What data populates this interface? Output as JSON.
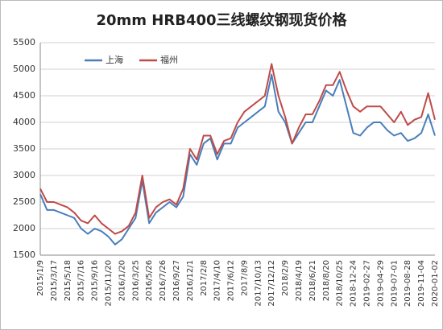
{
  "chart_data": {
    "type": "line",
    "title": "20mm HRB400三线螺纹钢现货价格",
    "categories": [
      "2015/1/9",
      null,
      "2015/3/17",
      null,
      "2015/5/18",
      null,
      "2015/7/16",
      null,
      "2015/9/16",
      null,
      "2015/11/20",
      null,
      "2016/1/20",
      null,
      "2016/3/25",
      null,
      "2016/5/26",
      null,
      "2016/7/26",
      null,
      "2016/9/27",
      null,
      "2016/12/1",
      null,
      "2017/2/8",
      null,
      "2017/4/10",
      null,
      "2017/6/12",
      null,
      "2017/8/9",
      null,
      "2017/10/13",
      null,
      "2017/12/12",
      null,
      "2018/2/9",
      null,
      "2018/4/19",
      null,
      "2018/6/21",
      null,
      "2018/8/20",
      null,
      "2018/10/25",
      null,
      "2018-12-24",
      null,
      "2019-02-27",
      null,
      "2019-04-29",
      null,
      "2019-07-01",
      null,
      "2019-08-28",
      null,
      "2019-11-04",
      null,
      "2020-01-02"
    ],
    "series": [
      {
        "name": "上海",
        "color": "#4a7ebb",
        "values": [
          2650,
          2350,
          2350,
          2300,
          2250,
          2200,
          2000,
          1900,
          2000,
          1950,
          1850,
          1700,
          1800,
          2000,
          2200,
          2900,
          2100,
          2300,
          2400,
          2500,
          2400,
          2600,
          3400,
          3200,
          3600,
          3700,
          3300,
          3600,
          3600,
          3900,
          4000,
          4100,
          4200,
          4300,
          4900,
          4200,
          4000,
          3600,
          3800,
          4000,
          4000,
          4300,
          4600,
          4500,
          4800,
          4300,
          3800,
          3750,
          3900,
          4000,
          4000,
          3850,
          3750,
          3800,
          3650,
          3700,
          3800,
          4150,
          3750
        ]
      },
      {
        "name": "福州",
        "color": "#be4b48",
        "values": [
          2750,
          2500,
          2500,
          2450,
          2400,
          2300,
          2150,
          2100,
          2250,
          2100,
          2000,
          1900,
          1950,
          2050,
          2300,
          3000,
          2200,
          2400,
          2500,
          2550,
          2450,
          2750,
          3500,
          3300,
          3750,
          3750,
          3400,
          3650,
          3700,
          4000,
          4200,
          4300,
          4400,
          4500,
          5100,
          4500,
          4100,
          3600,
          3900,
          4150,
          4150,
          4400,
          4700,
          4700,
          4950,
          4600,
          4300,
          4200,
          4300,
          4300,
          4300,
          4150,
          4000,
          4200,
          3950,
          4050,
          4100,
          4550,
          4050
        ]
      }
    ],
    "ylim": [
      1500,
      5500
    ],
    "yticks": [
      1500,
      2000,
      2500,
      3000,
      3500,
      4000,
      4500,
      5000,
      5500
    ],
    "grid": true,
    "legend": "top-left"
  }
}
